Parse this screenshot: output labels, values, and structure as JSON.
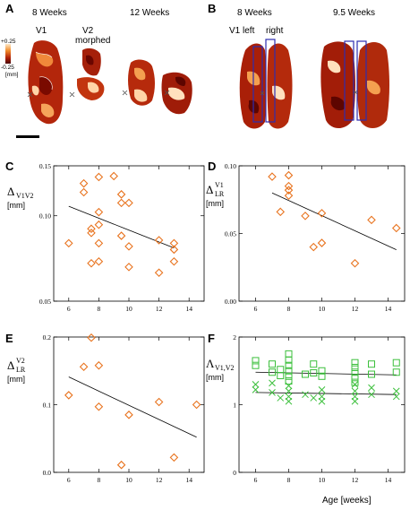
{
  "panel_labels": [
    "A",
    "B",
    "C",
    "D",
    "E",
    "F"
  ],
  "panel_a": {
    "headers": [
      "8 Weeks",
      "12 Weeks"
    ],
    "sublabels": [
      "V1",
      "V2",
      "morphed"
    ],
    "colorbar": {
      "top": "+0.25",
      "bottom": "-0.25",
      "unit": "[mm]"
    }
  },
  "panel_b": {
    "headers": [
      "8 Weeks",
      "9.5 Weeks"
    ],
    "sublabels": [
      "V1 left",
      "right"
    ]
  },
  "colors": {
    "diamond": "#e8731e",
    "square": "#3bbf3b",
    "fit": "#000000",
    "map_dark": "#7a0a00",
    "map_mid": "#d24a12",
    "map_light": "#ffd5a8",
    "roi": "#2d2db0"
  },
  "x_axis_label": "Age [weeks]",
  "chart_data": [
    {
      "panel": "C",
      "type": "scatter",
      "ylog": true,
      "ylabel": "Δ",
      "ylabel_sub": "V1V2",
      "ylabel_sup": "",
      "unit": "[mm]",
      "xlim": [
        5,
        15
      ],
      "ylim": [
        0.05,
        0.15
      ],
      "xticks": [
        "6",
        "8",
        "10",
        "12",
        "14"
      ],
      "xtick_values": [
        6,
        8,
        10,
        12,
        14
      ],
      "yticks": [
        "0.05",
        "0.10",
        "0.15"
      ],
      "ytick_values": [
        0.05,
        0.1,
        0.15
      ],
      "series": [
        {
          "marker": "diamond",
          "points": [
            [
              6,
              0.08
            ],
            [
              7,
              0.13
            ],
            [
              7,
              0.121
            ],
            [
              7.5,
              0.09
            ],
            [
              7.5,
              0.068
            ],
            [
              7.5,
              0.087
            ],
            [
              8,
              0.137
            ],
            [
              8,
              0.103
            ],
            [
              8,
              0.093
            ],
            [
              8,
              0.08
            ],
            [
              8,
              0.069
            ],
            [
              9,
              0.138
            ],
            [
              9.5,
              0.119
            ],
            [
              9.5,
              0.111
            ],
            [
              9.5,
              0.085
            ],
            [
              10,
              0.111
            ],
            [
              10,
              0.078
            ],
            [
              10,
              0.066
            ],
            [
              12,
              0.082
            ],
            [
              12,
              0.063
            ],
            [
              13,
              0.08
            ],
            [
              13,
              0.076
            ],
            [
              13,
              0.069
            ]
          ]
        }
      ],
      "fit": [
        [
          6,
          0.108
        ],
        [
          13,
          0.077
        ]
      ]
    },
    {
      "panel": "D",
      "type": "scatter",
      "ylabel": "Δ",
      "ylabel_sub": "LR",
      "ylabel_sup": "V1",
      "unit": "[mm]",
      "xlim": [
        5,
        15
      ],
      "ylim": [
        0.0,
        0.1
      ],
      "xticks": [
        "6",
        "8",
        "10",
        "12",
        "14"
      ],
      "xtick_values": [
        6,
        8,
        10,
        12,
        14
      ],
      "yticks": [
        "0.00",
        "0.05",
        "0.10"
      ],
      "ytick_values": [
        0.0,
        0.05,
        0.1
      ],
      "series": [
        {
          "marker": "diamond",
          "points": [
            [
              7,
              0.092
            ],
            [
              7.5,
              0.066
            ],
            [
              8,
              0.093
            ],
            [
              8,
              0.085
            ],
            [
              8,
              0.082
            ],
            [
              8,
              0.078
            ],
            [
              9,
              0.063
            ],
            [
              9.5,
              0.04
            ],
            [
              10,
              0.065
            ],
            [
              10,
              0.043
            ],
            [
              12,
              0.028
            ],
            [
              13,
              0.06
            ],
            [
              14.5,
              0.054
            ]
          ]
        }
      ],
      "fit": [
        [
          7,
          0.08
        ],
        [
          14.5,
          0.038
        ]
      ]
    },
    {
      "panel": "E",
      "type": "scatter",
      "ylabel": "Δ",
      "ylabel_sub": "LR",
      "ylabel_sup": "V2",
      "unit": "[mm]",
      "xlim": [
        5,
        15
      ],
      "ylim": [
        0.0,
        0.2
      ],
      "xticks": [
        "6",
        "8",
        "10",
        "12",
        "14"
      ],
      "xtick_values": [
        6,
        8,
        10,
        12,
        14
      ],
      "yticks": [
        "0.0",
        "0.1",
        "0.2"
      ],
      "ytick_values": [
        0.0,
        0.1,
        0.2
      ],
      "series": [
        {
          "marker": "diamond",
          "points": [
            [
              6,
              0.114
            ],
            [
              7,
              0.156
            ],
            [
              7.5,
              0.199
            ],
            [
              8,
              0.158
            ],
            [
              8,
              0.097
            ],
            [
              9.5,
              0.011
            ],
            [
              10,
              0.085
            ],
            [
              12,
              0.104
            ],
            [
              13,
              0.022
            ],
            [
              14.5,
              0.1
            ]
          ]
        }
      ],
      "fit": [
        [
          6,
          0.141
        ],
        [
          14.5,
          0.052
        ]
      ]
    },
    {
      "panel": "F",
      "type": "scatter",
      "ylabel": "Λ",
      "ylabel_sub": "V1,V2",
      "ylabel_sup": "",
      "unit": "[mm]",
      "xlim": [
        5,
        15
      ],
      "ylim": [
        0,
        2
      ],
      "xticks": [
        "6",
        "8",
        "10",
        "12",
        "14"
      ],
      "xtick_values": [
        6,
        8,
        10,
        12,
        14
      ],
      "yticks": [
        "0",
        "1",
        "2"
      ],
      "ytick_values": [
        0,
        1,
        2
      ],
      "series": [
        {
          "marker": "square",
          "points": [
            [
              6,
              1.65
            ],
            [
              6,
              1.58
            ],
            [
              7,
              1.6
            ],
            [
              7,
              1.48
            ],
            [
              7.5,
              1.43
            ],
            [
              7.5,
              1.52
            ],
            [
              8,
              1.75
            ],
            [
              8,
              1.66
            ],
            [
              8,
              1.58
            ],
            [
              8,
              1.5
            ],
            [
              8,
              1.42
            ],
            [
              8,
              1.35
            ],
            [
              9,
              1.45
            ],
            [
              9.5,
              1.6
            ],
            [
              9.5,
              1.47
            ],
            [
              10,
              1.5
            ],
            [
              10,
              1.42
            ],
            [
              12,
              1.62
            ],
            [
              12,
              1.55
            ],
            [
              12,
              1.48
            ],
            [
              12,
              1.4
            ],
            [
              12,
              1.33
            ],
            [
              13,
              1.6
            ],
            [
              13,
              1.45
            ],
            [
              14.5,
              1.62
            ],
            [
              14.5,
              1.48
            ]
          ]
        },
        {
          "marker": "x",
          "points": [
            [
              6,
              1.3
            ],
            [
              6,
              1.22
            ],
            [
              7,
              1.32
            ],
            [
              7,
              1.18
            ],
            [
              7.5,
              1.1
            ],
            [
              8,
              1.28
            ],
            [
              8,
              1.2
            ],
            [
              8,
              1.12
            ],
            [
              8,
              1.05
            ],
            [
              9,
              1.15
            ],
            [
              9.5,
              1.1
            ],
            [
              10,
              1.22
            ],
            [
              10,
              1.12
            ],
            [
              10,
              1.05
            ],
            [
              12,
              1.3
            ],
            [
              12,
              1.2
            ],
            [
              12,
              1.12
            ],
            [
              12,
              1.05
            ],
            [
              13,
              1.25
            ],
            [
              13,
              1.15
            ],
            [
              14.5,
              1.2
            ],
            [
              14.5,
              1.12
            ]
          ]
        }
      ],
      "fit": [
        [
          6,
          1.48
        ],
        [
          14.5,
          1.44
        ]
      ],
      "fit2": [
        [
          6,
          1.18
        ],
        [
          14.5,
          1.15
        ]
      ]
    }
  ]
}
